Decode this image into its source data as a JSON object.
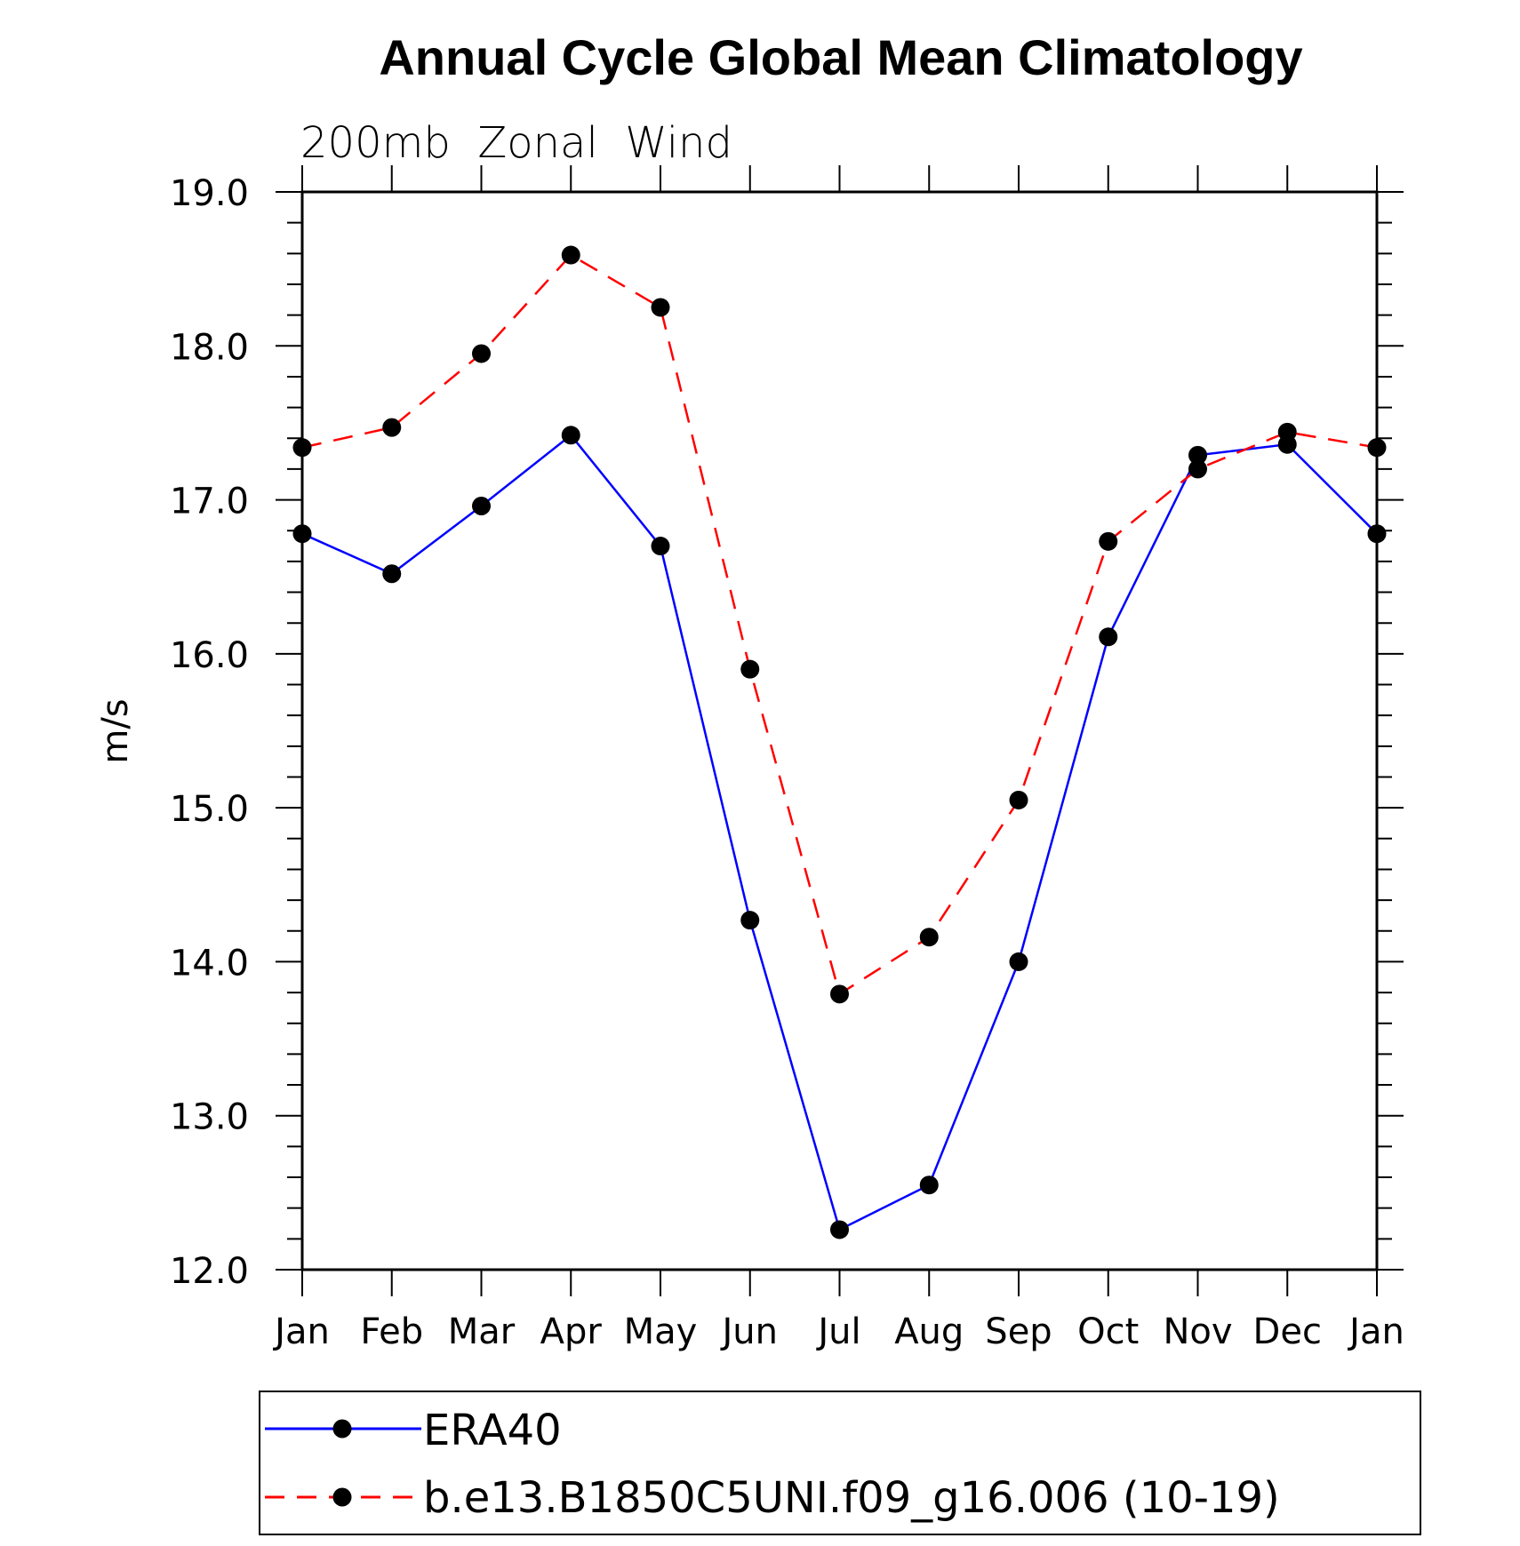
{
  "chart_data": {
    "type": "line",
    "title": "Annual Cycle Global Mean Climatology",
    "subtitle": "200mb  Zonal  Wind",
    "xlabel": "",
    "ylabel": "m/s",
    "categories": [
      "Jan",
      "Feb",
      "Mar",
      "Apr",
      "May",
      "Jun",
      "Jul",
      "Aug",
      "Sep",
      "Oct",
      "Nov",
      "Dec",
      "Jan"
    ],
    "ylim": [
      12.0,
      19.0
    ],
    "yticks": [
      "12.0",
      "13.0",
      "14.0",
      "15.0",
      "16.0",
      "17.0",
      "18.0",
      "19.0"
    ],
    "grid": false,
    "legend_placement": "bottom",
    "series": [
      {
        "name": "ERA40",
        "color": "#0000ff",
        "line_style": "solid",
        "values": [
          16.78,
          16.52,
          16.96,
          17.42,
          16.7,
          14.27,
          12.26,
          12.55,
          14.0,
          16.11,
          17.29,
          17.36,
          16.78
        ]
      },
      {
        "name": "b.e13.B1850C5UNI.f09_g16.006 (10-19)",
        "color": "#ff0000",
        "line_style": "dashed",
        "values": [
          17.34,
          17.47,
          17.95,
          18.59,
          18.25,
          15.9,
          13.79,
          14.16,
          15.05,
          16.73,
          17.2,
          17.44,
          17.34
        ]
      }
    ]
  }
}
